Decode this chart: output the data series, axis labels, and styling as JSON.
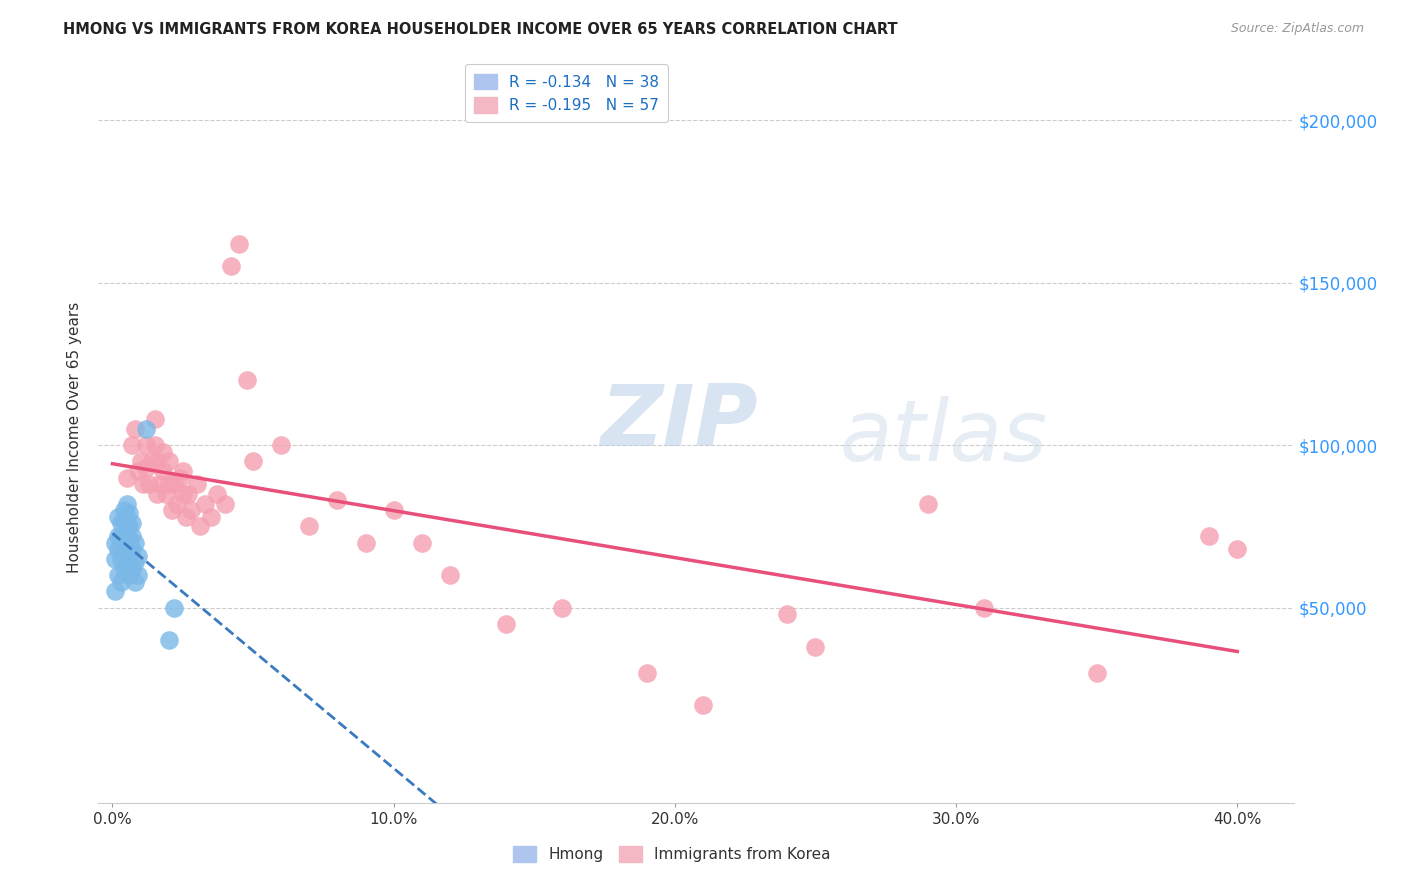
{
  "title": "HMONG VS IMMIGRANTS FROM KOREA HOUSEHOLDER INCOME OVER 65 YEARS CORRELATION CHART",
  "source": "Source: ZipAtlas.com",
  "ylabel": "Householder Income Over 65 years",
  "xlabel_ticks": [
    "0.0%",
    "10.0%",
    "20.0%",
    "30.0%",
    "40.0%"
  ],
  "xlabel_tick_vals": [
    0.0,
    0.1,
    0.2,
    0.3,
    0.4
  ],
  "ytick_labels": [
    "$50,000",
    "$100,000",
    "$150,000",
    "$200,000"
  ],
  "ytick_vals": [
    50000,
    100000,
    150000,
    200000
  ],
  "xlim": [
    -0.005,
    0.42
  ],
  "ylim": [
    -10000,
    215000
  ],
  "hmong_color": "#7ab8e8",
  "korea_color": "#f4a0b0",
  "trendline_hmong_color": "#3a7abf",
  "trendline_korea_color": "#e8507a",
  "watermark_zip": "ZIP",
  "watermark_atlas": "atlas",
  "hmong_x": [
    0.001,
    0.001,
    0.001,
    0.002,
    0.002,
    0.002,
    0.002,
    0.003,
    0.003,
    0.003,
    0.003,
    0.004,
    0.004,
    0.004,
    0.004,
    0.004,
    0.005,
    0.005,
    0.005,
    0.005,
    0.005,
    0.006,
    0.006,
    0.006,
    0.006,
    0.006,
    0.007,
    0.007,
    0.007,
    0.007,
    0.008,
    0.008,
    0.008,
    0.009,
    0.009,
    0.012,
    0.02,
    0.022
  ],
  "hmong_y": [
    55000,
    65000,
    70000,
    60000,
    68000,
    72000,
    78000,
    58000,
    65000,
    72000,
    76000,
    62000,
    68000,
    73000,
    77000,
    80000,
    64000,
    70000,
    74000,
    78000,
    82000,
    60000,
    66000,
    71000,
    75000,
    79000,
    62000,
    68000,
    72000,
    76000,
    58000,
    64000,
    70000,
    60000,
    66000,
    105000,
    40000,
    50000
  ],
  "korea_x": [
    0.005,
    0.007,
    0.008,
    0.009,
    0.01,
    0.011,
    0.012,
    0.012,
    0.013,
    0.014,
    0.015,
    0.015,
    0.016,
    0.016,
    0.017,
    0.018,
    0.018,
    0.019,
    0.02,
    0.02,
    0.021,
    0.022,
    0.023,
    0.024,
    0.025,
    0.025,
    0.026,
    0.027,
    0.028,
    0.03,
    0.031,
    0.033,
    0.035,
    0.037,
    0.04,
    0.042,
    0.045,
    0.048,
    0.05,
    0.06,
    0.07,
    0.08,
    0.09,
    0.1,
    0.11,
    0.12,
    0.14,
    0.16,
    0.19,
    0.21,
    0.24,
    0.25,
    0.29,
    0.31,
    0.35,
    0.39,
    0.4
  ],
  "korea_y": [
    90000,
    100000,
    105000,
    92000,
    95000,
    88000,
    93000,
    100000,
    88000,
    95000,
    100000,
    108000,
    85000,
    95000,
    88000,
    92000,
    98000,
    85000,
    88000,
    95000,
    80000,
    88000,
    82000,
    90000,
    85000,
    92000,
    78000,
    85000,
    80000,
    88000,
    75000,
    82000,
    78000,
    85000,
    82000,
    155000,
    162000,
    120000,
    95000,
    100000,
    75000,
    83000,
    70000,
    80000,
    70000,
    60000,
    45000,
    50000,
    30000,
    20000,
    48000,
    38000,
    82000,
    50000,
    30000,
    72000,
    68000
  ]
}
